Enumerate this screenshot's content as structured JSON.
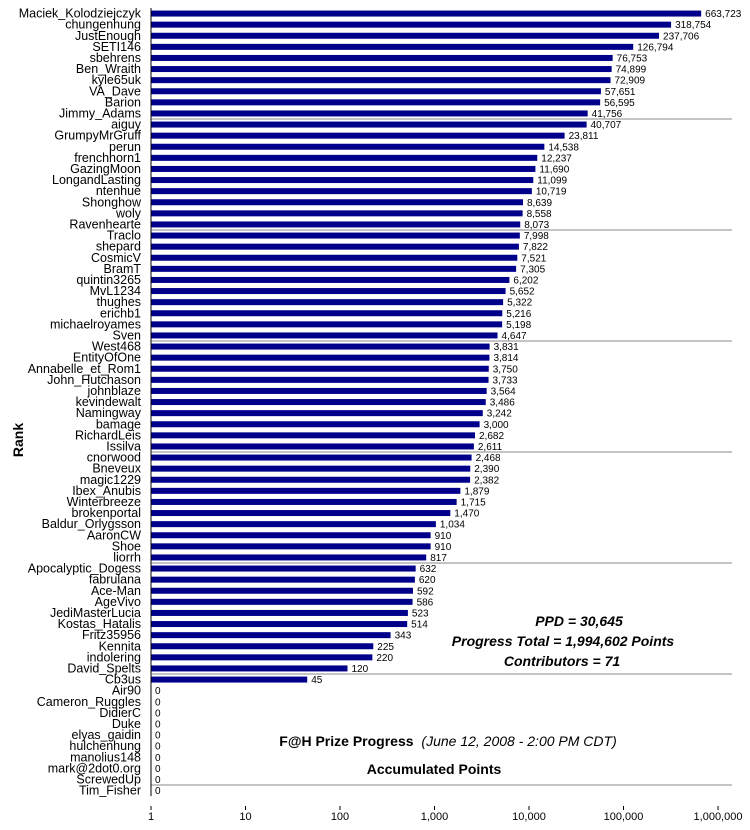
{
  "chart_data": {
    "type": "bar",
    "orientation": "horizontal",
    "xscale": "log",
    "xlim": [
      1,
      1000000
    ],
    "xticks": [
      "1",
      "10",
      "100",
      "1,000",
      "10,000",
      "100,000",
      "1,000,000"
    ],
    "ylabel": "Rank",
    "xlabel": "Accumulated Points",
    "title_main": "F@H Prize Progress",
    "title_sub": "(June 12, 2008 - 2:00 PM CDT)",
    "annotations": [
      "PPD = 30,645",
      "Progress Total = 1,994,602 Points",
      "Contributors = 71"
    ],
    "bar_color": "#00008B",
    "grid": "horizontal lines every 10 categories",
    "categories": [
      "Maciek_Kolodziejczyk",
      "chungenhung",
      "JustEnough",
      "SETI146",
      "sbehrens",
      "Ben_Wraith",
      "kyle65uk",
      "VA_Dave",
      "Barion",
      "Jimmy_Adams",
      "aiguy",
      "GrumpyMrGruff",
      "perun",
      "frenchhorn1",
      "GazingMoon",
      "LongandLasting",
      "ntenhue",
      "Shonghow",
      "woly",
      "Ravenhearte",
      "Traclo",
      "shepard",
      "CosmicV",
      "BramT",
      "quintin3265",
      "MvL1234",
      "thughes",
      "erichb1",
      "michaelroyames",
      "Sven",
      "West468",
      "EntityOfOne",
      "Annabelle_et_Rom1",
      "John_Hutchason",
      "johnblaze",
      "kevindewalt",
      "Namingway",
      "bamage",
      "RichardLeis",
      "Issilva",
      "cnorwood",
      "Bneveux",
      "magic1229",
      "Ibex_Anubis",
      "Winterbreeze",
      "brokenportal",
      "Baldur_Orlygsson",
      "AaronCW",
      "Shoe",
      "liorrh",
      "Apocalyptic_Dogess",
      "fabrulana",
      "Ace-Man",
      "AgeVivo",
      "JediMasterLucia",
      "Kostas_Hatalis",
      "Fritz35956",
      "Kennita",
      "indolering",
      "David_Spelts",
      "Cb3us",
      "Air90",
      "Cameron_Ruggles",
      "DidierC",
      "Duke",
      "elyas_gaidin",
      "hulchenhung",
      "manolius148",
      "mark@2dot0.org",
      "ScrewedUp",
      "Tim_Fisher"
    ],
    "values": [
      663723,
      318754,
      237706,
      126794,
      76753,
      74899,
      72909,
      57651,
      56595,
      41756,
      40707,
      23811,
      14538,
      12237,
      11690,
      11099,
      10719,
      8639,
      8558,
      8073,
      7998,
      7822,
      7521,
      7305,
      6202,
      5652,
      5322,
      5216,
      5198,
      4647,
      3831,
      3814,
      3750,
      3733,
      3564,
      3486,
      3242,
      3000,
      2682,
      2611,
      2468,
      2390,
      2382,
      1879,
      1715,
      1470,
      1034,
      910,
      910,
      817,
      632,
      620,
      592,
      586,
      523,
      514,
      343,
      225,
      220,
      120,
      45,
      0,
      0,
      0,
      0,
      0,
      0,
      0,
      0,
      0,
      0
    ],
    "value_labels": [
      "663,723",
      "318,754",
      "237,706",
      "126,794",
      "76,753",
      "74,899",
      "72,909",
      "57,651",
      "56,595",
      "41,756",
      "40,707",
      "23,811",
      "14,538",
      "12,237",
      "11,690",
      "11,099",
      "10,719",
      "8,639",
      "8,558",
      "8,073",
      "7,998",
      "7,822",
      "7,521",
      "7,305",
      "6,202",
      "5,652",
      "5,322",
      "5,216",
      "5,198",
      "4,647",
      "3,831",
      "3,814",
      "3,750",
      "3,733",
      "3,564",
      "3,486",
      "3,242",
      "3,000",
      "2,682",
      "2,611",
      "2,468",
      "2,390",
      "2,382",
      "1,879",
      "1,715",
      "1,470",
      "1,034",
      "910",
      "910",
      "817",
      "632",
      "620",
      "592",
      "586",
      "523",
      "514",
      "343",
      "225",
      "220",
      "120",
      "45",
      "0",
      "0",
      "0",
      "0",
      "0",
      "0",
      "0",
      "0",
      "0",
      "0"
    ]
  }
}
